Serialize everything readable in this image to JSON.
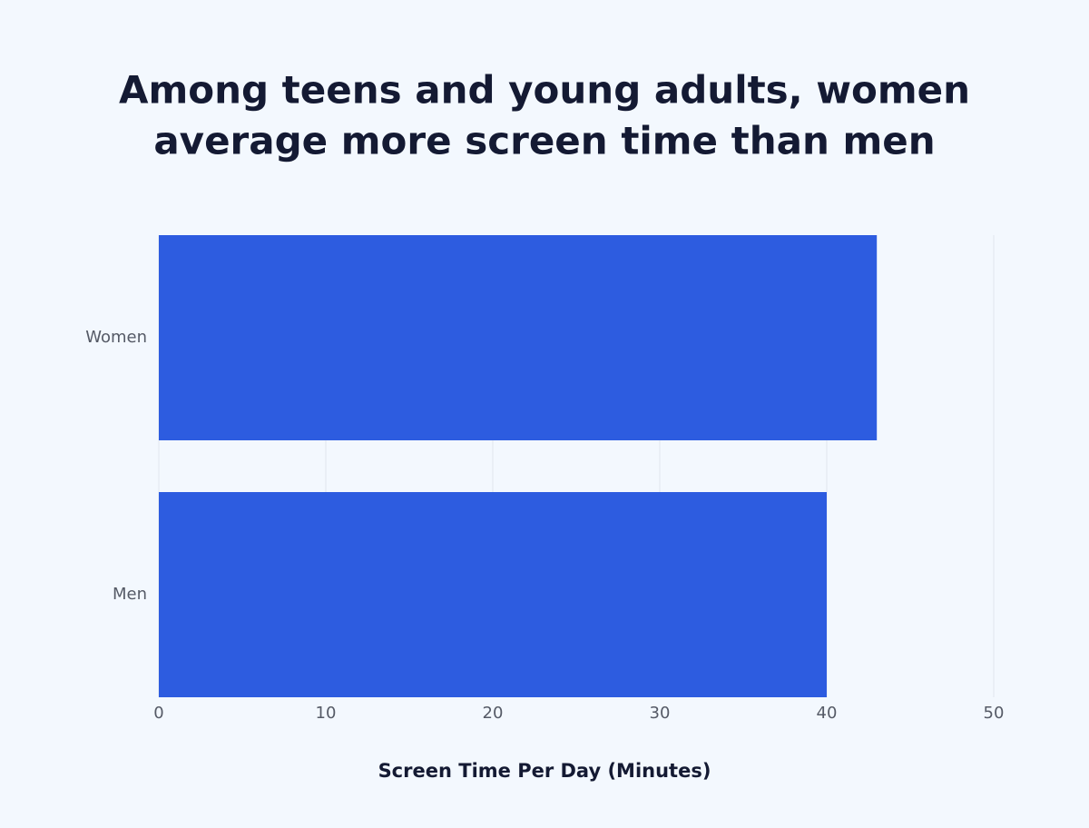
{
  "chart_data": {
    "type": "hbar",
    "title": [
      "Among teens and young adults, women",
      "average more screen time than men"
    ],
    "categories": [
      "Women",
      "Men"
    ],
    "values": [
      43,
      40
    ],
    "color": "#2d5ce0",
    "xlabel": "Screen Time Per Day (Minutes)",
    "xlim": [
      0,
      50
    ],
    "xticks": [
      0,
      10,
      20,
      30,
      40,
      50
    ],
    "grid": true
  }
}
